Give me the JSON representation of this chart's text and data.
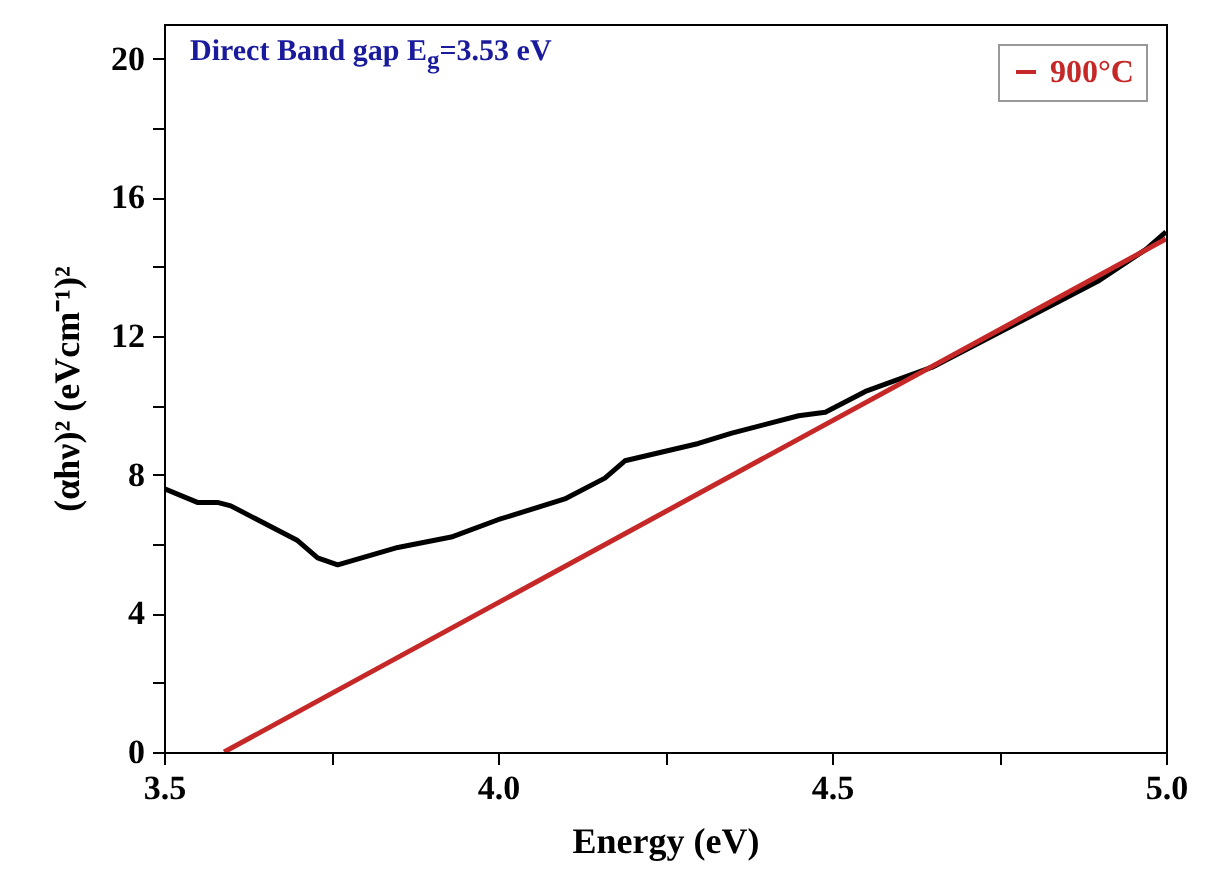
{
  "chart_data": {
    "type": "line",
    "xlabel": "Energy (eV)",
    "ylabel": "(αhν)² (eVcm⁻¹)²",
    "annotations": [
      "Direct Band gap E$_{g}$=3.53 eV"
    ],
    "xlim": [
      3.5,
      5.0
    ],
    "ylim": [
      0,
      21
    ],
    "xticks": [
      3.5,
      {
        "value": 3.75,
        "label": null
      },
      {
        "value": 4,
        "label": "4.0"
      },
      {
        "value": 4.25,
        "label": null
      },
      4.5,
      {
        "value": 4.75,
        "label": null
      },
      {
        "value": 5,
        "label": "5.0"
      }
    ],
    "yticks": [
      0,
      {
        "value": 2,
        "label": null
      },
      4,
      {
        "value": 6,
        "label": null
      },
      8,
      {
        "value": 10,
        "label": null
      },
      12,
      {
        "value": 14,
        "label": null
      },
      16,
      {
        "value": 18,
        "label": null
      },
      20
    ],
    "grid": false,
    "legend": "top right",
    "line_style": "solid",
    "series": [
      {
        "color": "#000000",
        "x": [
          3.5,
          3.55,
          3.58,
          3.6,
          3.7,
          3.73,
          3.76,
          3.85,
          3.93,
          4.0,
          4.1,
          4.16,
          4.19,
          4.3,
          4.35,
          4.45,
          4.49,
          4.55,
          4.65,
          4.8,
          4.9,
          4.97,
          5.0
        ],
        "values": [
          7.6,
          7.2,
          7.2,
          7.1,
          6.1,
          5.6,
          5.4,
          5.9,
          6.2,
          6.7,
          7.3,
          7.9,
          8.4,
          8.9,
          9.2,
          9.7,
          9.8,
          10.4,
          11.1,
          12.6,
          13.6,
          14.5,
          15.0
        ]
      },
      {
        "name": "900°C",
        "color": "#c62828",
        "x": [
          3.59,
          5.0
        ],
        "values": [
          0,
          14.8
        ]
      }
    ]
  }
}
